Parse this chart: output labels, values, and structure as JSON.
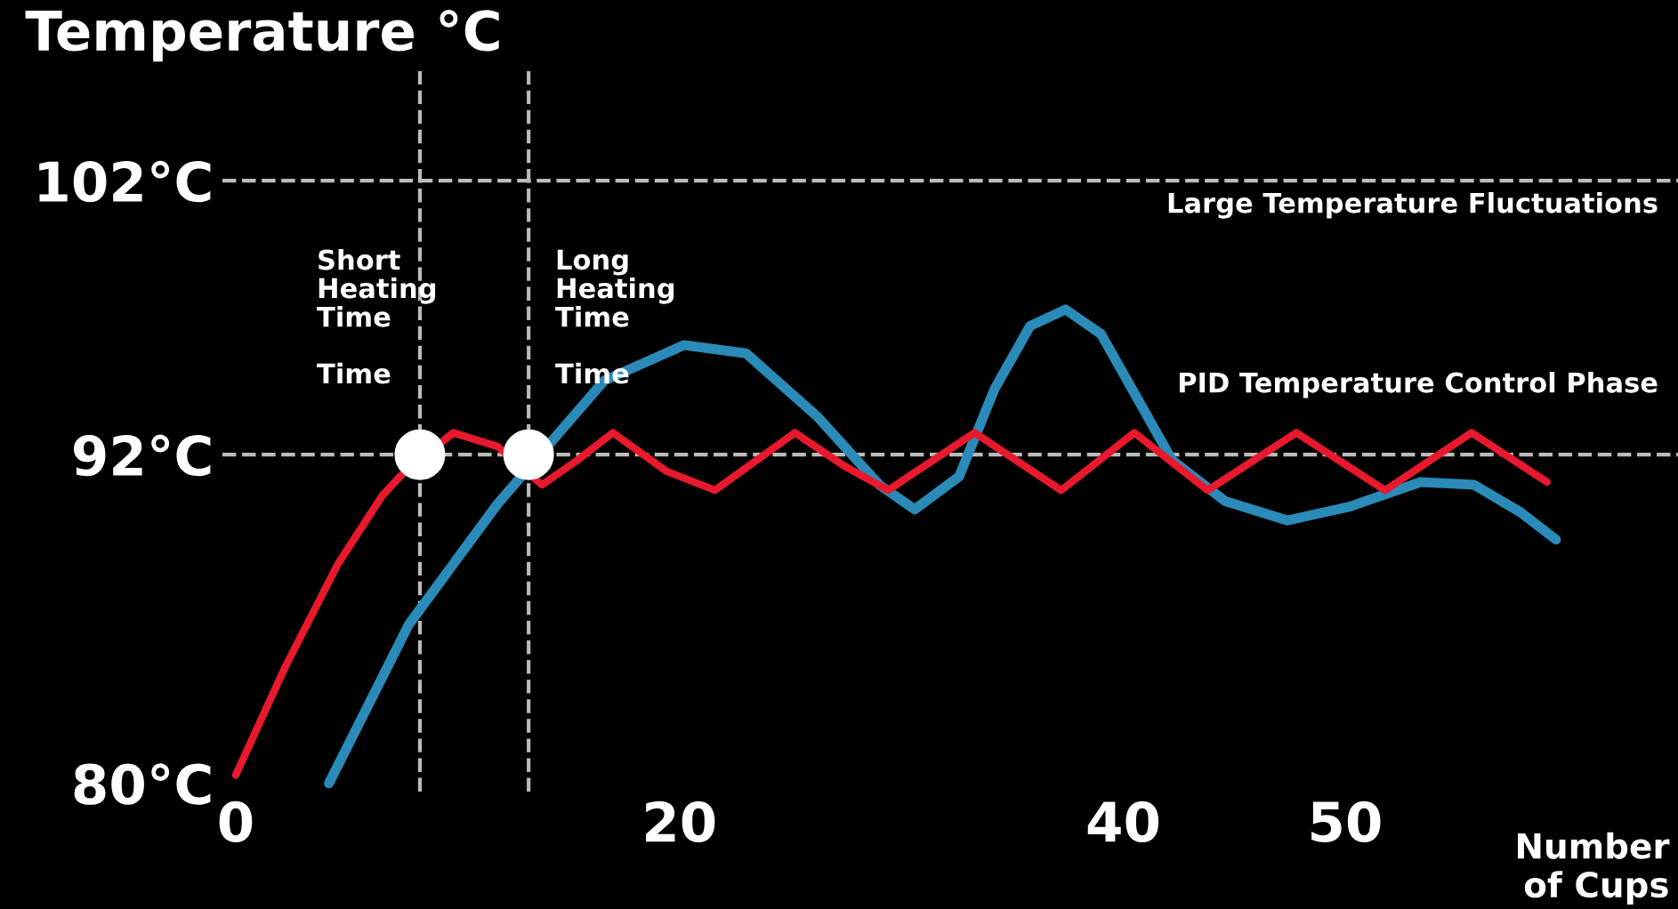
{
  "chart_data": {
    "type": "line",
    "ylabel": "Temperature °C",
    "xlabel": "Number\nof Cups",
    "xlim": [
      -0.6,
      65
    ],
    "xticks": [
      0,
      20,
      40,
      50
    ],
    "ylim": [
      79.7,
      106
    ],
    "yticks": [
      {
        "value": 80,
        "label": "80°C"
      },
      {
        "value": 92,
        "label": "92°C"
      },
      {
        "value": 102,
        "label": "102°C"
      }
    ],
    "series": [
      {
        "color": "#2a8ab8",
        "x": [
          4.2,
          7.8,
          11.8,
          16.6,
          20.2,
          23.0,
          26.2,
          29.0,
          30.6,
          32.6,
          34.2,
          35.8,
          37.4,
          39.0,
          40.6,
          42.2,
          44.6,
          47.4,
          50.2,
          53.4,
          55.8,
          57.9,
          59.5
        ],
        "values": [
          80,
          85.8,
          90.2,
          94.7,
          96.0,
          95.7,
          93.4,
          90.9,
          90.0,
          91.2,
          94.4,
          96.7,
          97.3,
          96.4,
          94.1,
          91.8,
          90.3,
          89.6,
          90.1,
          91.0,
          90.9,
          89.9,
          88.9
        ]
      },
      {
        "color": "#e8192c",
        "x": [
          0,
          2.2,
          4.6,
          6.6,
          7.4,
          9.8,
          11.8,
          13.8,
          15.4,
          17.0,
          19.4,
          21.6,
          25.2,
          27.4,
          29.4,
          33.3,
          37.2,
          40.5,
          43.8,
          47.8,
          51.8,
          55.7,
          59.1
        ],
        "values": [
          80.3,
          84.2,
          88.0,
          90.5,
          91.2,
          92.8,
          92.3,
          90.9,
          91.8,
          92.8,
          91.4,
          90.7,
          92.8,
          91.6,
          90.7,
          92.8,
          90.7,
          92.8,
          90.7,
          92.8,
          90.7,
          92.8,
          91.0
        ]
      },
      {
        "type": "scatter",
        "color": "#ffffff",
        "x": [
          8.3,
          13.2
        ],
        "values": [
          92,
          92
        ]
      }
    ],
    "ref_lines": [
      {
        "axis": "y",
        "value": 92,
        "color": "#bbbbbb",
        "line_style": "dashed"
      },
      {
        "axis": "y",
        "value": 102,
        "color": "#bbbbbb",
        "line_style": "dashed"
      },
      {
        "axis": "x",
        "value": 8.3,
        "color": "#bbbbbb",
        "line_style": "dashed"
      },
      {
        "axis": "x",
        "value": 13.2,
        "color": "#bbbbbb",
        "line_style": "dashed"
      }
    ],
    "annotations": [
      "Short\nHeating\nTime\n\nTime",
      "Long\nHeating\nTime\n\nTime",
      "Large Temperature Fluctuations",
      "PID Temperature Control Phase"
    ],
    "line_style": "solid",
    "grid": false,
    "legend": false
  }
}
